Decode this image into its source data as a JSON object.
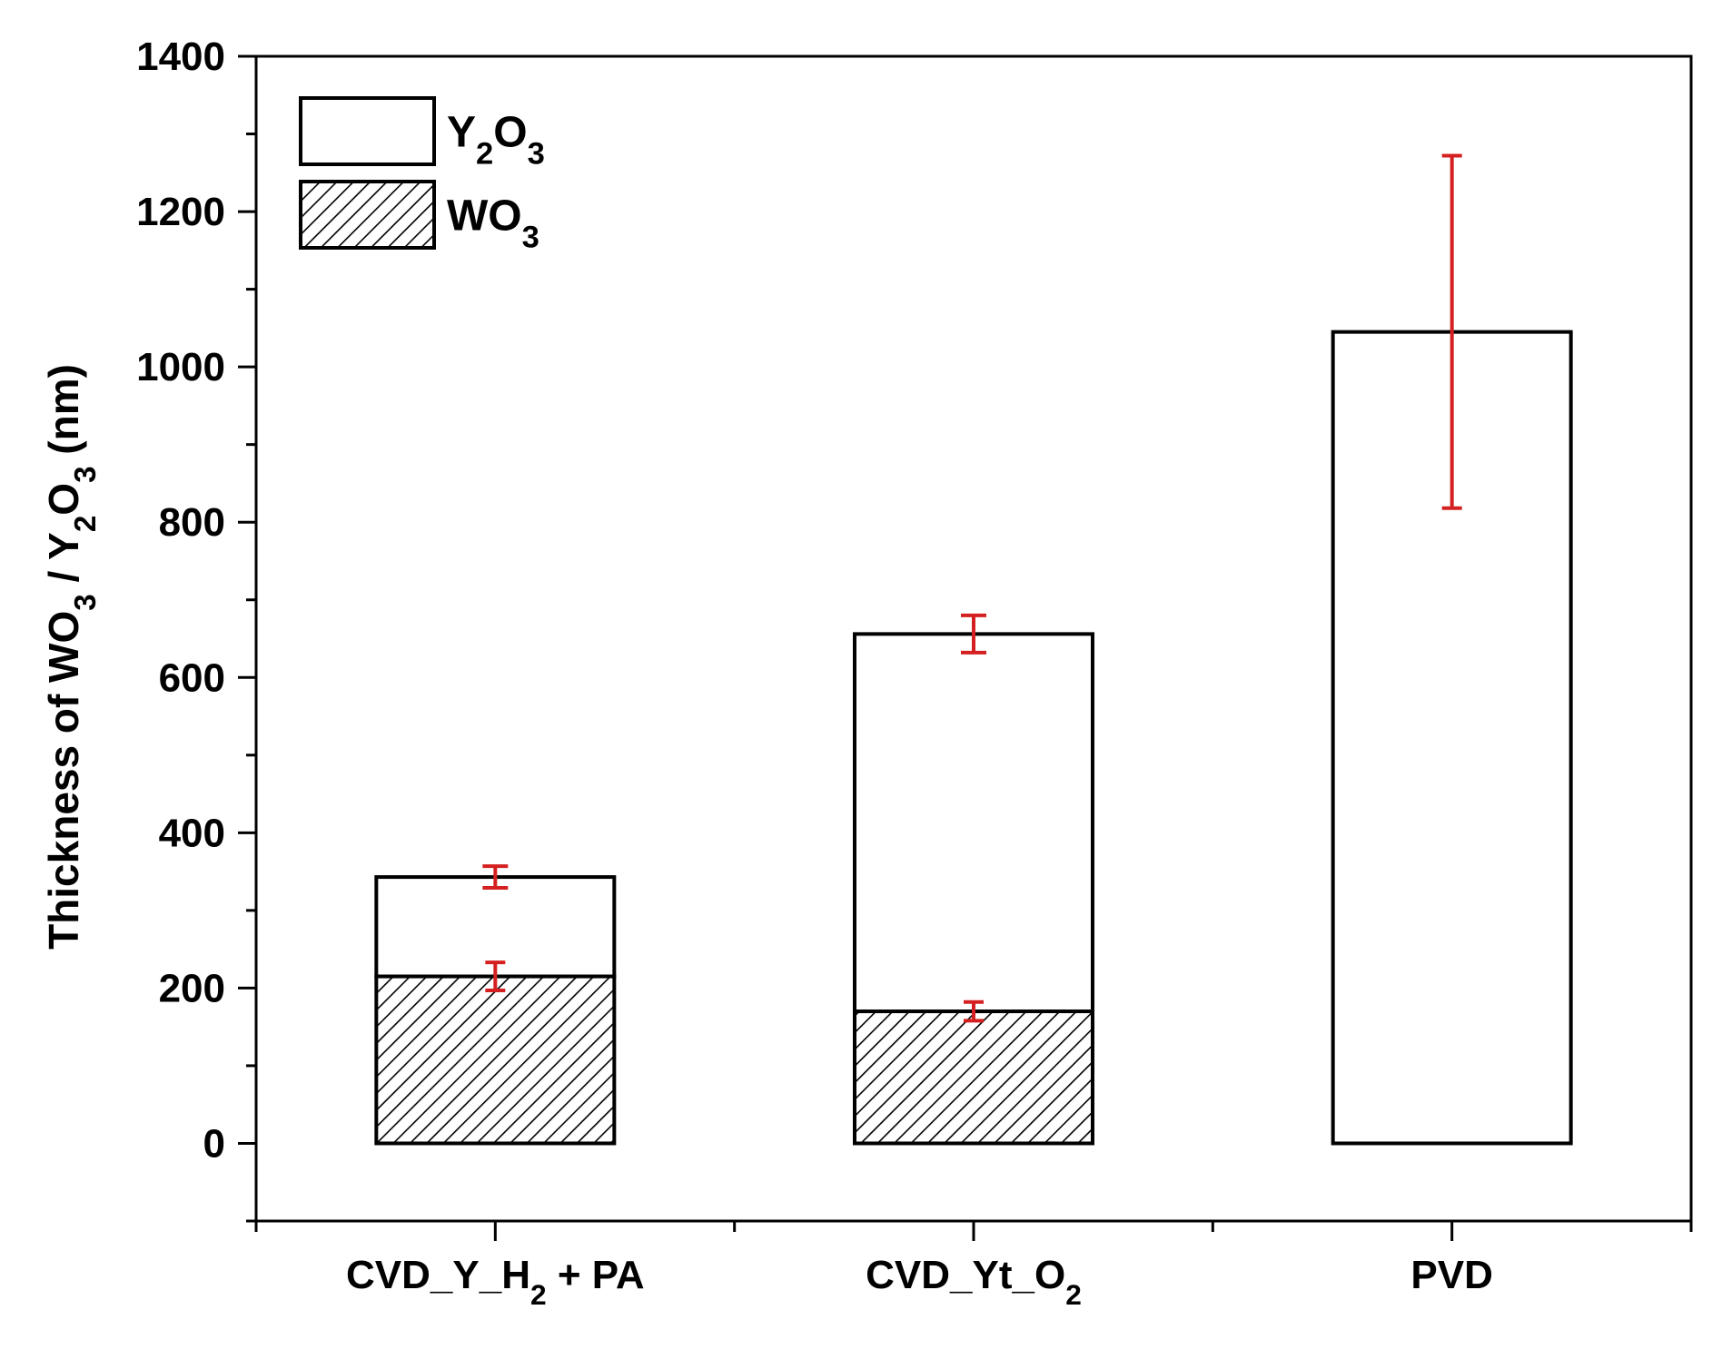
{
  "chart_data": {
    "type": "bar",
    "stacked": true,
    "title": "",
    "xlabel": "",
    "ylabel": {
      "parts": [
        {
          "t": "Thickness of WO"
        },
        {
          "t": "3",
          "sub": true
        },
        {
          "t": " / Y"
        },
        {
          "t": "2",
          "sub": true
        },
        {
          "t": "O"
        },
        {
          "t": "3",
          "sub": true
        },
        {
          "t": " (nm)"
        }
      ]
    },
    "ylim": [
      -100,
      1400
    ],
    "yticks": [
      0,
      200,
      400,
      600,
      800,
      1000,
      1200,
      1400
    ],
    "categories": [
      {
        "parts": [
          {
            "t": "CVD_Y_H"
          },
          {
            "t": "2",
            "sub": true
          },
          {
            "t": " + PA"
          }
        ]
      },
      {
        "parts": [
          {
            "t": "CVD_Yt_O"
          },
          {
            "t": "2",
            "sub": true
          }
        ]
      },
      {
        "parts": [
          {
            "t": "PVD"
          }
        ]
      }
    ],
    "series": [
      {
        "name": "WO3",
        "label_parts": [
          {
            "t": "WO"
          },
          {
            "t": "3",
            "sub": true
          }
        ],
        "fill": "hatch",
        "values": [
          215,
          170,
          0
        ],
        "errors": [
          18,
          12,
          null
        ]
      },
      {
        "name": "Y2O3",
        "label_parts": [
          {
            "t": "Y"
          },
          {
            "t": "2",
            "sub": true
          },
          {
            "t": "O"
          },
          {
            "t": "3",
            "sub": true
          }
        ],
        "fill": "white",
        "totals": [
          343,
          656,
          1045
        ],
        "errors": [
          14,
          24,
          227
        ]
      }
    ],
    "legend_position": "top-left",
    "colors": {
      "error_bar": "#d42020",
      "bar_stroke": "#000000",
      "hatch": "#000000"
    }
  }
}
